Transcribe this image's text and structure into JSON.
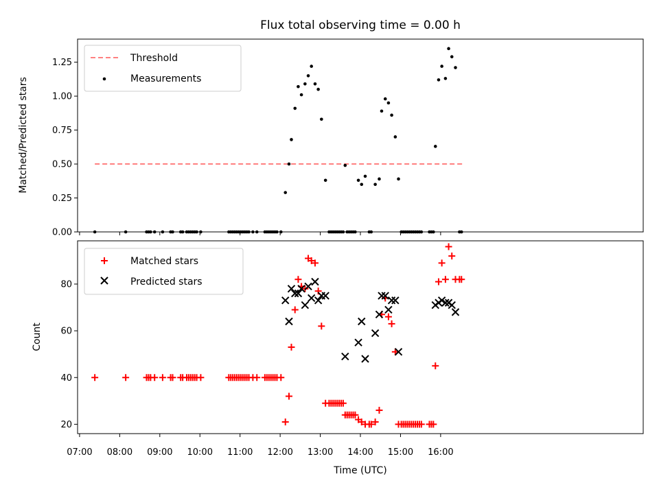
{
  "chart_data": [
    {
      "type": "scatter",
      "title": "Flux total observing time = 0.00 h",
      "xlabel": "",
      "ylabel": "Matched/Predicted stars",
      "ylim": [
        0,
        1.42
      ],
      "xlim_hours": [
        6.95,
        21.05
      ],
      "yticks": [
        0,
        0.25,
        0.5,
        0.75,
        1.0,
        1.25
      ],
      "ytick_labels": [
        "0.00",
        "0.25",
        "0.50",
        "0.75",
        "1.00",
        "1.25"
      ],
      "legend": {
        "location": "upper left",
        "entries": [
          "Threshold",
          "Measurements"
        ]
      },
      "threshold": {
        "name": "Threshold",
        "value": 0.5,
        "x_start": 7.38,
        "x_end": 16.55,
        "color": "#ff8080"
      },
      "series": [
        {
          "name": "Measurements",
          "marker": "dot",
          "color": "#000000",
          "points": [
            [
              7.38,
              0.0
            ],
            [
              8.15,
              0.0
            ],
            [
              8.67,
              0.0
            ],
            [
              8.72,
              0.0
            ],
            [
              8.77,
              0.0
            ],
            [
              8.87,
              0.0
            ],
            [
              9.07,
              0.0
            ],
            [
              9.27,
              0.0
            ],
            [
              9.32,
              0.0
            ],
            [
              9.52,
              0.0
            ],
            [
              9.57,
              0.0
            ],
            [
              9.67,
              0.0
            ],
            [
              9.72,
              0.0
            ],
            [
              9.77,
              0.0
            ],
            [
              9.82,
              0.0
            ],
            [
              9.87,
              0.0
            ],
            [
              9.92,
              0.0
            ],
            [
              10.02,
              0.0
            ],
            [
              10.72,
              0.0
            ],
            [
              10.77,
              0.0
            ],
            [
              10.82,
              0.0
            ],
            [
              10.87,
              0.0
            ],
            [
              10.92,
              0.0
            ],
            [
              10.97,
              0.0
            ],
            [
              11.02,
              0.0
            ],
            [
              11.07,
              0.0
            ],
            [
              11.12,
              0.0
            ],
            [
              11.17,
              0.0
            ],
            [
              11.22,
              0.0
            ],
            [
              11.32,
              0.0
            ],
            [
              11.42,
              0.0
            ],
            [
              11.62,
              0.0
            ],
            [
              11.67,
              0.0
            ],
            [
              11.72,
              0.0
            ],
            [
              11.77,
              0.0
            ],
            [
              11.82,
              0.0
            ],
            [
              11.87,
              0.0
            ],
            [
              11.92,
              0.0
            ],
            [
              12.02,
              0.0
            ],
            [
              12.13,
              0.29
            ],
            [
              12.22,
              0.5
            ],
            [
              12.28,
              0.68
            ],
            [
              12.37,
              0.91
            ],
            [
              12.45,
              1.07
            ],
            [
              12.53,
              1.01
            ],
            [
              12.62,
              1.09
            ],
            [
              12.7,
              1.15
            ],
            [
              12.78,
              1.22
            ],
            [
              12.87,
              1.09
            ],
            [
              12.95,
              1.05
            ],
            [
              13.03,
              0.83
            ],
            [
              13.13,
              0.38
            ],
            [
              13.22,
              0.0
            ],
            [
              13.27,
              0.0
            ],
            [
              13.32,
              0.0
            ],
            [
              13.37,
              0.0
            ],
            [
              13.42,
              0.0
            ],
            [
              13.47,
              0.0
            ],
            [
              13.52,
              0.0
            ],
            [
              13.57,
              0.0
            ],
            [
              13.62,
              0.49
            ],
            [
              13.67,
              0.0
            ],
            [
              13.72,
              0.0
            ],
            [
              13.77,
              0.0
            ],
            [
              13.82,
              0.0
            ],
            [
              13.87,
              0.0
            ],
            [
              13.95,
              0.38
            ],
            [
              14.03,
              0.35
            ],
            [
              14.12,
              0.41
            ],
            [
              14.22,
              0.0
            ],
            [
              14.27,
              0.0
            ],
            [
              14.37,
              0.35
            ],
            [
              14.47,
              0.39
            ],
            [
              14.53,
              0.89
            ],
            [
              14.62,
              0.98
            ],
            [
              14.7,
              0.95
            ],
            [
              14.78,
              0.86
            ],
            [
              14.87,
              0.7
            ],
            [
              14.95,
              0.39
            ],
            [
              15.02,
              0.0
            ],
            [
              15.07,
              0.0
            ],
            [
              15.12,
              0.0
            ],
            [
              15.17,
              0.0
            ],
            [
              15.22,
              0.0
            ],
            [
              15.27,
              0.0
            ],
            [
              15.32,
              0.0
            ],
            [
              15.37,
              0.0
            ],
            [
              15.42,
              0.0
            ],
            [
              15.47,
              0.0
            ],
            [
              15.52,
              0.0
            ],
            [
              15.72,
              0.0
            ],
            [
              15.77,
              0.0
            ],
            [
              15.82,
              0.0
            ],
            [
              15.87,
              0.63
            ],
            [
              15.95,
              1.12
            ],
            [
              16.03,
              1.22
            ],
            [
              16.12,
              1.13
            ],
            [
              16.2,
              1.35
            ],
            [
              16.28,
              1.29
            ],
            [
              16.37,
              1.21
            ],
            [
              16.47,
              0.0
            ],
            [
              16.52,
              0.0
            ]
          ]
        }
      ]
    },
    {
      "type": "scatter",
      "title": "",
      "xlabel": "Time (UTC)",
      "ylabel": "Count",
      "ylim": [
        16,
        98.5
      ],
      "xlim_hours": [
        6.95,
        21.05
      ],
      "yticks": [
        20,
        40,
        60,
        80
      ],
      "ytick_labels": [
        "20",
        "40",
        "60",
        "80"
      ],
      "xticks_hours": [
        7,
        8,
        9,
        10,
        11,
        12,
        13,
        14,
        15,
        16
      ],
      "xtick_labels": [
        "07:00",
        "08:00",
        "09:00",
        "10:00",
        "11:00",
        "12:00",
        "13:00",
        "14:00",
        "15:00",
        "16:00"
      ],
      "legend": {
        "location": "upper left",
        "entries": [
          "Matched stars",
          "Predicted stars"
        ]
      },
      "series": [
        {
          "name": "Matched stars",
          "marker": "plus",
          "color": "#ff0000",
          "points": [
            [
              7.38,
              40
            ],
            [
              8.15,
              40
            ],
            [
              8.67,
              40
            ],
            [
              8.72,
              40
            ],
            [
              8.77,
              40
            ],
            [
              8.87,
              40
            ],
            [
              9.07,
              40
            ],
            [
              9.27,
              40
            ],
            [
              9.32,
              40
            ],
            [
              9.52,
              40
            ],
            [
              9.57,
              40
            ],
            [
              9.67,
              40
            ],
            [
              9.72,
              40
            ],
            [
              9.77,
              40
            ],
            [
              9.82,
              40
            ],
            [
              9.87,
              40
            ],
            [
              9.92,
              40
            ],
            [
              10.02,
              40
            ],
            [
              10.72,
              40
            ],
            [
              10.77,
              40
            ],
            [
              10.82,
              40
            ],
            [
              10.87,
              40
            ],
            [
              10.92,
              40
            ],
            [
              10.97,
              40
            ],
            [
              11.02,
              40
            ],
            [
              11.07,
              40
            ],
            [
              11.12,
              40
            ],
            [
              11.17,
              40
            ],
            [
              11.22,
              40
            ],
            [
              11.32,
              40
            ],
            [
              11.42,
              40
            ],
            [
              11.62,
              40
            ],
            [
              11.67,
              40
            ],
            [
              11.72,
              40
            ],
            [
              11.77,
              40
            ],
            [
              11.82,
              40
            ],
            [
              11.87,
              40
            ],
            [
              11.92,
              40
            ],
            [
              12.02,
              40
            ],
            [
              12.13,
              21
            ],
            [
              12.22,
              32
            ],
            [
              12.28,
              53
            ],
            [
              12.37,
              69
            ],
            [
              12.45,
              82
            ],
            [
              12.53,
              79
            ],
            [
              12.62,
              78
            ],
            [
              12.7,
              91
            ],
            [
              12.78,
              90
            ],
            [
              12.87,
              89
            ],
            [
              12.95,
              77
            ],
            [
              13.03,
              62
            ],
            [
              13.13,
              29
            ],
            [
              13.22,
              29
            ],
            [
              13.27,
              29
            ],
            [
              13.32,
              29
            ],
            [
              13.37,
              29
            ],
            [
              13.42,
              29
            ],
            [
              13.47,
              29
            ],
            [
              13.52,
              29
            ],
            [
              13.57,
              29
            ],
            [
              13.62,
              24
            ],
            [
              13.67,
              24
            ],
            [
              13.72,
              24
            ],
            [
              13.77,
              24
            ],
            [
              13.82,
              24
            ],
            [
              13.87,
              24
            ],
            [
              13.95,
              22
            ],
            [
              14.03,
              21
            ],
            [
              14.12,
              20
            ],
            [
              14.22,
              20
            ],
            [
              14.27,
              20
            ],
            [
              14.37,
              21
            ],
            [
              14.47,
              26
            ],
            [
              14.53,
              67
            ],
            [
              14.62,
              74
            ],
            [
              14.7,
              66
            ],
            [
              14.78,
              63
            ],
            [
              14.87,
              51
            ],
            [
              14.95,
              20
            ],
            [
              15.02,
              20
            ],
            [
              15.07,
              20
            ],
            [
              15.12,
              20
            ],
            [
              15.17,
              20
            ],
            [
              15.22,
              20
            ],
            [
              15.27,
              20
            ],
            [
              15.32,
              20
            ],
            [
              15.37,
              20
            ],
            [
              15.42,
              20
            ],
            [
              15.47,
              20
            ],
            [
              15.52,
              20
            ],
            [
              15.72,
              20
            ],
            [
              15.77,
              20
            ],
            [
              15.82,
              20
            ],
            [
              15.87,
              45
            ],
            [
              15.95,
              81
            ],
            [
              16.03,
              89
            ],
            [
              16.12,
              82
            ],
            [
              16.2,
              96
            ],
            [
              16.28,
              92
            ],
            [
              16.37,
              82
            ],
            [
              16.47,
              82
            ],
            [
              16.52,
              82
            ]
          ]
        },
        {
          "name": "Predicted stars",
          "marker": "x",
          "color": "#000000",
          "points": [
            [
              12.13,
              73
            ],
            [
              12.22,
              64
            ],
            [
              12.28,
              78
            ],
            [
              12.37,
              76
            ],
            [
              12.45,
              76
            ],
            [
              12.53,
              78
            ],
            [
              12.62,
              71
            ],
            [
              12.7,
              79
            ],
            [
              12.78,
              74
            ],
            [
              12.87,
              81
            ],
            [
              12.95,
              73
            ],
            [
              13.03,
              75
            ],
            [
              13.13,
              75
            ],
            [
              13.62,
              49
            ],
            [
              13.95,
              55
            ],
            [
              14.03,
              64
            ],
            [
              14.12,
              48
            ],
            [
              14.37,
              59
            ],
            [
              14.47,
              67
            ],
            [
              14.53,
              75
            ],
            [
              14.62,
              75
            ],
            [
              14.7,
              69
            ],
            [
              14.78,
              73
            ],
            [
              14.87,
              73
            ],
            [
              14.95,
              51
            ],
            [
              15.87,
              71
            ],
            [
              15.95,
              72
            ],
            [
              16.03,
              73
            ],
            [
              16.12,
              72
            ],
            [
              16.2,
              72
            ],
            [
              16.28,
              71
            ],
            [
              16.37,
              68
            ]
          ]
        }
      ]
    }
  ]
}
